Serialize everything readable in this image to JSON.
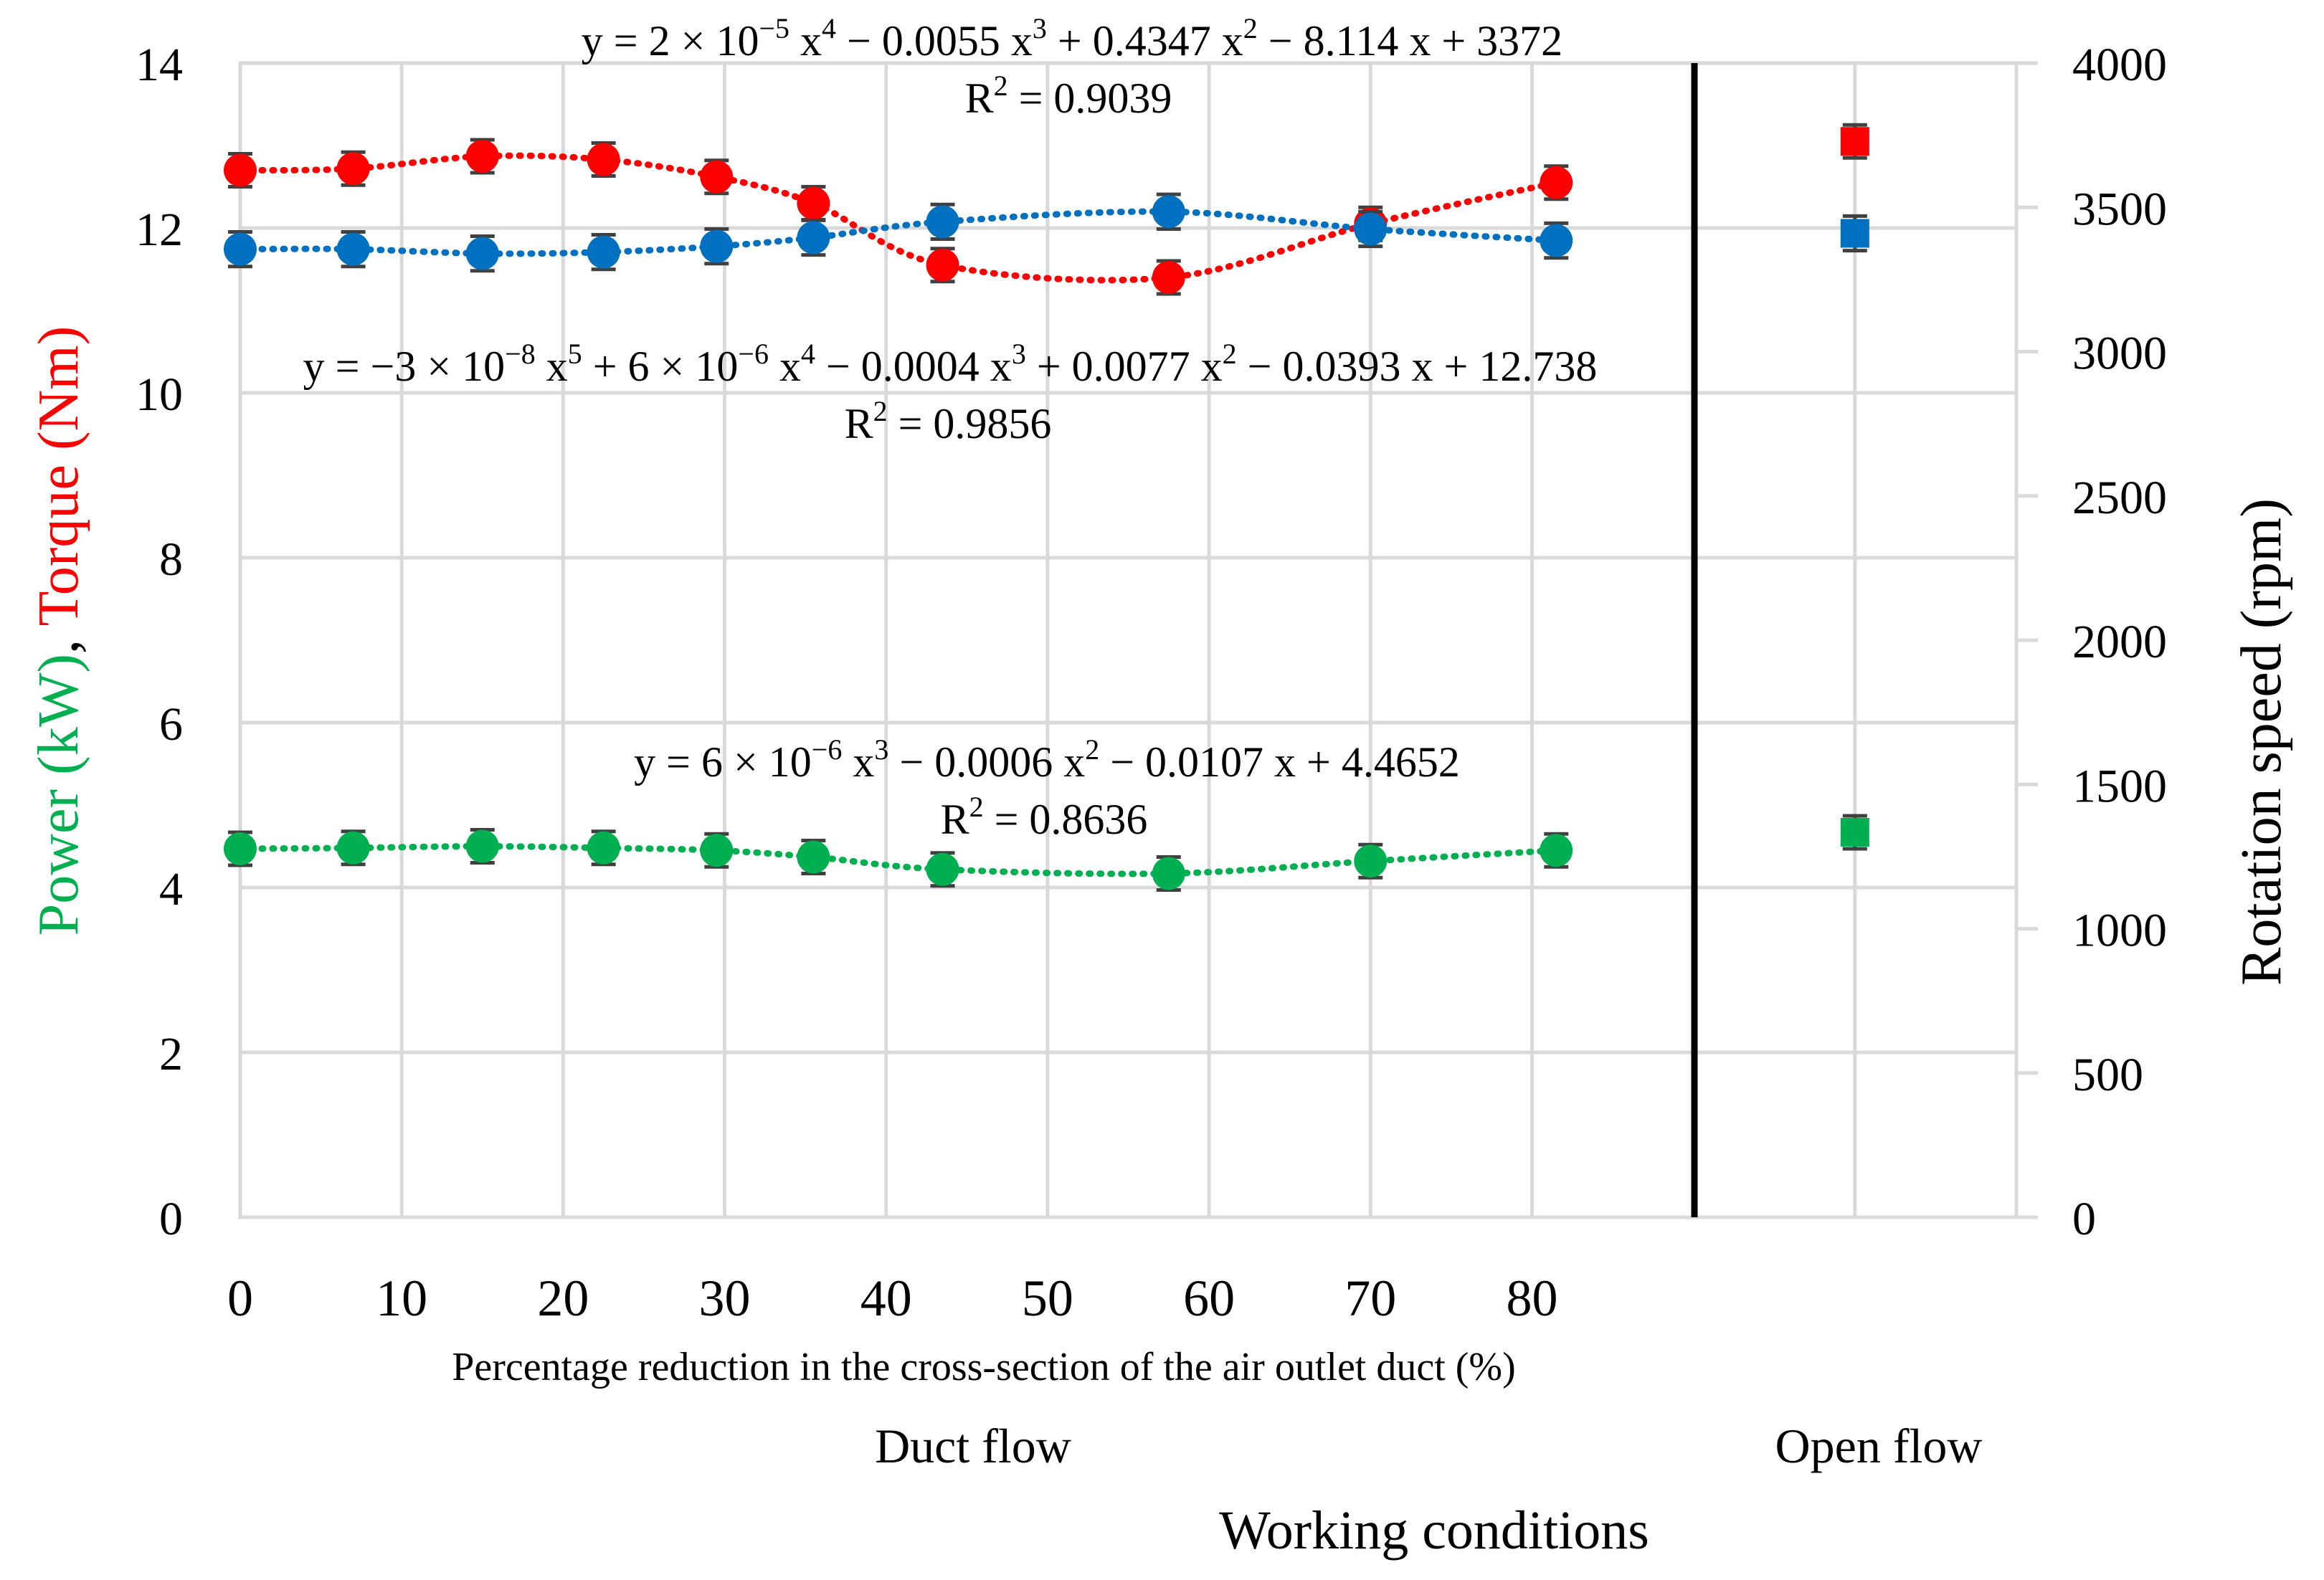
{
  "chart_data": {
    "type": "scatter",
    "title": "",
    "y_left": {
      "ticks": [
        "0",
        "2",
        "4",
        "6",
        "8",
        "10",
        "12",
        "14"
      ],
      "ylim": [
        0,
        14
      ]
    },
    "y_right": {
      "ticks": [
        "0",
        "500",
        "1000",
        "1500",
        "2000",
        "2500",
        "3000",
        "3500",
        "4000"
      ],
      "ylim": [
        0,
        4000
      ]
    },
    "x": {
      "ticks": [
        "0",
        "10",
        "20",
        "30",
        "40",
        "50",
        "60",
        "70",
        "80"
      ],
      "xlim": [
        0,
        110
      ]
    },
    "xlabel": "Percentage reduction in the cross-section of the air outlet duct (%)",
    "group_labels": {
      "duct": "Duct flow",
      "open": "Open flow"
    },
    "working_conditions_label": "Working conditions",
    "ylabel_left": {
      "power": "Power (kW)",
      "sep": ", ",
      "torque": "Torque (Nm)"
    },
    "ylabel_right": "Rotation speed (rpm)",
    "colors": {
      "power": "#00b050",
      "torque": "#ff0000",
      "speed": "#0070c0",
      "grid": "#d9d9d9",
      "errorbar": "#404040"
    },
    "duct_x": [
      0,
      7,
      15,
      22.5,
      29.5,
      35.5,
      43.5,
      57.5,
      70,
      81.5
    ],
    "open_x": 100,
    "series": [
      {
        "name": "Torque (Nm)",
        "axis": "left",
        "color": "#ff0000",
        "values": [
          12.7,
          12.72,
          12.87,
          12.83,
          12.62,
          12.3,
          11.55,
          11.4,
          12.05,
          12.55
        ],
        "open_value": 13.05,
        "error": 0.2,
        "trendline": "y = -3 × 10^-8 x^5 + 6 × 10^-6 x^4 - 0.0004 x^3 + 0.0077 x^2 - 0.0393 x + 12.738"
      },
      {
        "name": "Rotation speed (rpm)",
        "axis": "right",
        "color": "#0070c0",
        "values": [
          3355,
          3355,
          3340,
          3345,
          3365,
          3395,
          3450,
          3485,
          3425,
          3385
        ],
        "open_value": 3410,
        "error": 60,
        "trendline": "y = 2 × 10^-5 x^4 - 0.0055 x^3 + 0.4347 x^2 - 8.114 x + 3372"
      },
      {
        "name": "Power (kW)",
        "axis": "left",
        "color": "#00b050",
        "values": [
          4.47,
          4.48,
          4.5,
          4.48,
          4.45,
          4.37,
          4.22,
          4.17,
          4.32,
          4.45
        ],
        "open_value": 4.67,
        "error": 0.2,
        "trendline": "y = 6 × 10^-6 x^3 - 0.0006 x^2 - 0.0107 x + 4.4652"
      }
    ],
    "annotations": {
      "speed": {
        "a": "y = 2 × 10",
        "a_exp": "−5",
        "b": " x",
        "b_exp": "4",
        "c": " − 0.0055 x",
        "c_exp": "3",
        "d": " + 0.4347 x",
        "d_exp": "2",
        "e": " − 8.114 x + 3372",
        "r2_a": "R",
        "r2_exp": "2",
        "r2_b": " = 0.9039"
      },
      "torque": {
        "a": "y = −3 × 10",
        "a_exp": "−8",
        "b": " x",
        "b_exp": "5",
        "c": " + 6 × 10",
        "c_exp": "−6",
        "d": " x",
        "d_exp": "4",
        "e": " − 0.0004 x",
        "e_exp": "3",
        "f": " + 0.0077 x",
        "f_exp": "2",
        "g": " − 0.0393 x + 12.738",
        "r2_a": "R",
        "r2_exp": "2",
        "r2_b": " = 0.9856"
      },
      "power": {
        "a": "y = 6 × 10",
        "a_exp": "−6",
        "b": " x",
        "b_exp": "3",
        "c": " − 0.0006 x",
        "c_exp": "2",
        "d": " − 0.0107 x + 4.4652",
        "r2_a": "R",
        "r2_exp": "2",
        "r2_b": " = 0.8636"
      }
    }
  }
}
